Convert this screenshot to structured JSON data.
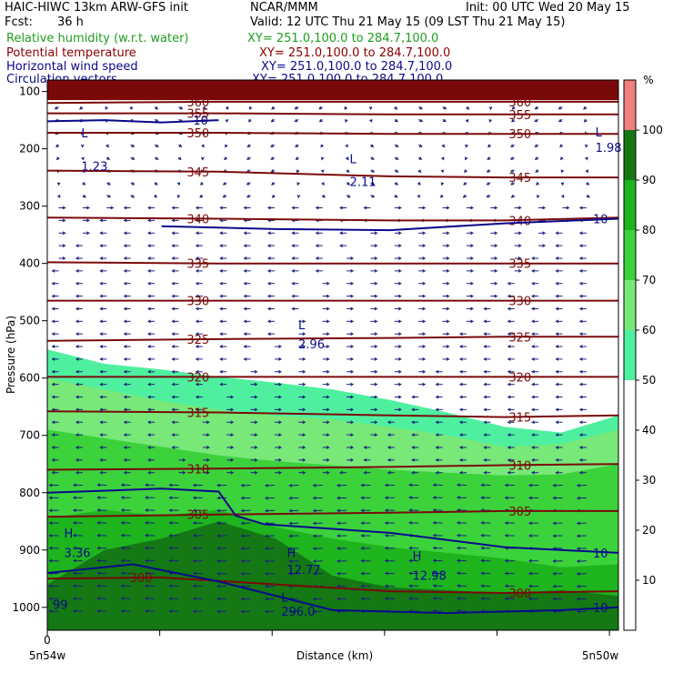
{
  "header": {
    "model": "HAIC-HIWC 13km ARW-GFS init",
    "org": "NCAR/MMM",
    "init": "Init: 00 UTC Wed 20 May 15",
    "fcst_label": "Fcst:",
    "fcst_value": "36 h",
    "valid": "Valid: 12 UTC Thu 21 May 15 (09 LST Thu 21 May 15)",
    "fields": [
      {
        "name": "Relative humidity (w.r.t. water)",
        "xy": "XY= 251.0,100.0 to 284.7,100.0",
        "color": "#1f9e1f"
      },
      {
        "name": "Potential temperature",
        "xy": "XY= 251.0,100.0 to 284.7,100.0",
        "color": "#8b0000"
      },
      {
        "name": "Horizontal wind speed",
        "xy": "XY= 251.0,100.0 to 284.7,100.0",
        "color": "#0a0a8c"
      },
      {
        "name": "Circulation vectors",
        "xy": "XY= 251.0,100.0 to 284.7,100.0",
        "color": "#0a0a8c"
      }
    ]
  },
  "chart_data": {
    "type": "heatmap",
    "title": "",
    "xlabel": "Distance (km)",
    "ylabel": "Pressure (hPa)",
    "x_ticks": [
      "0"
    ],
    "x_end_labels": {
      "left": "5n54w",
      "right": "5n50w"
    },
    "y_ticks": [
      100,
      200,
      300,
      400,
      500,
      600,
      700,
      800,
      900,
      1000
    ],
    "ylim": [
      1040,
      80
    ],
    "colorbar": {
      "unit": "%",
      "ticks": [
        10,
        20,
        30,
        40,
        50,
        60,
        70,
        80,
        90,
        100
      ],
      "bands": [
        {
          "from": 0,
          "to": 50,
          "color": "#ffffff"
        },
        {
          "from": 50,
          "to": 60,
          "color": "#4ef0a0"
        },
        {
          "from": 60,
          "to": 70,
          "color": "#78e878"
        },
        {
          "from": 70,
          "to": 80,
          "color": "#3cd23c"
        },
        {
          "from": 80,
          "to": 90,
          "color": "#1eb41e"
        },
        {
          "from": 90,
          "to": 100,
          "color": "#147814"
        },
        {
          "from": 100,
          "to": 110,
          "color": "#f08080"
        }
      ]
    },
    "rh_fill": [
      {
        "level": 50,
        "color": "#4ef0a0",
        "top": [
          [
            0,
            550
          ],
          [
            10,
            575
          ],
          [
            20,
            585
          ],
          [
            30,
            598
          ],
          [
            40,
            608
          ],
          [
            50,
            620
          ],
          [
            60,
            638
          ],
          [
            70,
            660
          ],
          [
            80,
            685
          ],
          [
            90,
            695
          ],
          [
            100,
            665
          ]
        ]
      },
      {
        "level": 60,
        "color": "#78e878",
        "top": [
          [
            0,
            600
          ],
          [
            10,
            620
          ],
          [
            20,
            640
          ],
          [
            30,
            655
          ],
          [
            40,
            665
          ],
          [
            50,
            672
          ],
          [
            60,
            685
          ],
          [
            70,
            700
          ],
          [
            80,
            720
          ],
          [
            90,
            715
          ],
          [
            100,
            690
          ]
        ]
      },
      {
        "level": 70,
        "color": "#3cd23c",
        "top": [
          [
            0,
            690
          ],
          [
            10,
            705
          ],
          [
            20,
            720
          ],
          [
            30,
            735
          ],
          [
            40,
            745
          ],
          [
            50,
            752
          ],
          [
            60,
            760
          ],
          [
            70,
            765
          ],
          [
            80,
            770
          ],
          [
            90,
            768
          ],
          [
            100,
            750
          ]
        ]
      },
      {
        "level": 80,
        "color": "#1eb41e",
        "top": [
          [
            0,
            845
          ],
          [
            10,
            830
          ],
          [
            20,
            840
          ],
          [
            30,
            830
          ],
          [
            40,
            860
          ],
          [
            50,
            880
          ],
          [
            60,
            895
          ],
          [
            70,
            905
          ],
          [
            80,
            915
          ],
          [
            90,
            930
          ],
          [
            100,
            925
          ]
        ]
      },
      {
        "level": 90,
        "color": "#147814",
        "top": [
          [
            0,
            960
          ],
          [
            10,
            900
          ],
          [
            20,
            880
          ],
          [
            30,
            850
          ],
          [
            40,
            880
          ],
          [
            50,
            945
          ],
          [
            60,
            965
          ],
          [
            70,
            970
          ],
          [
            80,
            975
          ],
          [
            90,
            970
          ],
          [
            100,
            980
          ]
        ]
      }
    ],
    "theta_contours": [
      {
        "value": 300,
        "label": "300",
        "points": [
          [
            0,
            950
          ],
          [
            20,
            948
          ],
          [
            40,
            960
          ],
          [
            60,
            972
          ],
          [
            80,
            975
          ],
          [
            100,
            972
          ]
        ]
      },
      {
        "value": 305,
        "label": "305",
        "points": [
          [
            0,
            842
          ],
          [
            30,
            838
          ],
          [
            60,
            835
          ],
          [
            80,
            832
          ],
          [
            100,
            832
          ]
        ]
      },
      {
        "value": 310,
        "label": "310",
        "points": [
          [
            0,
            760
          ],
          [
            30,
            758
          ],
          [
            60,
            755
          ],
          [
            80,
            752
          ],
          [
            100,
            750
          ]
        ]
      },
      {
        "value": 315,
        "label": "315",
        "points": [
          [
            0,
            658
          ],
          [
            30,
            660
          ],
          [
            60,
            665
          ],
          [
            80,
            668
          ],
          [
            100,
            665
          ]
        ]
      },
      {
        "value": 320,
        "label": "320",
        "points": [
          [
            0,
            598
          ],
          [
            30,
            598
          ],
          [
            60,
            598
          ],
          [
            80,
            598
          ],
          [
            100,
            598
          ]
        ]
      },
      {
        "value": 325,
        "label": "325",
        "points": [
          [
            0,
            535
          ],
          [
            30,
            532
          ],
          [
            60,
            530
          ],
          [
            80,
            528
          ],
          [
            100,
            528
          ]
        ]
      },
      {
        "value": 330,
        "label": "330",
        "points": [
          [
            0,
            465
          ],
          [
            30,
            465
          ],
          [
            60,
            465
          ],
          [
            80,
            465
          ],
          [
            100,
            465
          ]
        ]
      },
      {
        "value": 335,
        "label": "335",
        "points": [
          [
            0,
            398
          ],
          [
            30,
            400
          ],
          [
            60,
            400
          ],
          [
            80,
            400
          ],
          [
            100,
            400
          ]
        ]
      },
      {
        "value": 340,
        "label": "340",
        "points": [
          [
            0,
            320
          ],
          [
            30,
            322
          ],
          [
            60,
            325
          ],
          [
            80,
            325
          ],
          [
            100,
            320
          ]
        ]
      },
      {
        "value": 345,
        "label": "345",
        "points": [
          [
            0,
            238
          ],
          [
            30,
            240
          ],
          [
            60,
            248
          ],
          [
            80,
            250
          ],
          [
            100,
            250
          ]
        ]
      },
      {
        "value": 350,
        "label": "350",
        "points": [
          [
            0,
            172
          ],
          [
            30,
            172
          ],
          [
            60,
            174
          ],
          [
            80,
            174
          ],
          [
            100,
            174
          ]
        ]
      },
      {
        "value": 355,
        "label": "355",
        "points": [
          [
            0,
            138
          ],
          [
            30,
            138
          ],
          [
            60,
            140
          ],
          [
            80,
            140
          ],
          [
            100,
            140
          ]
        ]
      },
      {
        "value": 360,
        "label": "360",
        "points": [
          [
            0,
            120
          ],
          [
            30,
            118
          ],
          [
            60,
            118
          ],
          [
            80,
            118
          ],
          [
            100,
            118
          ]
        ]
      }
    ],
    "wind_contours": [
      {
        "value": 10,
        "label": "10",
        "points": [
          [
            0,
            800
          ],
          [
            20,
            793
          ],
          [
            30,
            798
          ],
          [
            33,
            840
          ],
          [
            38,
            855
          ],
          [
            60,
            870
          ],
          [
            80,
            895
          ],
          [
            100,
            905
          ]
        ]
      },
      {
        "value": 10,
        "label": "10",
        "points": [
          [
            20,
            335
          ],
          [
            40,
            340
          ],
          [
            60,
            342
          ],
          [
            80,
            330
          ],
          [
            100,
            322
          ]
        ]
      },
      {
        "value": 10,
        "label": "10",
        "points": [
          [
            0,
            152
          ],
          [
            10,
            150
          ],
          [
            20,
            154
          ],
          [
            30,
            150
          ]
        ]
      },
      {
        "value": 10,
        "label": "10",
        "points": [
          [
            0,
            940
          ],
          [
            15,
            925
          ],
          [
            30,
            955
          ],
          [
            50,
            1005
          ],
          [
            70,
            1010
          ],
          [
            90,
            1005
          ],
          [
            100,
            1000
          ]
        ]
      }
    ],
    "annotations": [
      {
        "text": "L",
        "x": 5,
        "y": 180
      },
      {
        "text": "1.23",
        "x": 5,
        "y": 238
      },
      {
        "text": "L",
        "x": 52,
        "y": 225
      },
      {
        "text": "2.11",
        "x": 52,
        "y": 265
      },
      {
        "text": "L",
        "x": 95,
        "y": 178
      },
      {
        "text": "1.98",
        "x": 95,
        "y": 205
      },
      {
        "text": "L",
        "x": 43,
        "y": 515
      },
      {
        "text": "2.96",
        "x": 43,
        "y": 548
      },
      {
        "text": "H",
        "x": 2,
        "y": 878
      },
      {
        "text": "3.36",
        "x": 2,
        "y": 912
      },
      {
        "text": "H",
        "x": 41,
        "y": 912
      },
      {
        "text": "12.77",
        "x": 41,
        "y": 942
      },
      {
        "text": "H",
        "x": 63,
        "y": 918
      },
      {
        "text": "12.98",
        "x": 63,
        "y": 952
      },
      {
        "text": "L",
        "x": 40,
        "y": 990
      },
      {
        "text": "296.0",
        "x": 40,
        "y": 1015
      },
      {
        "text": "99",
        "x": 0,
        "y": 1003
      }
    ]
  }
}
